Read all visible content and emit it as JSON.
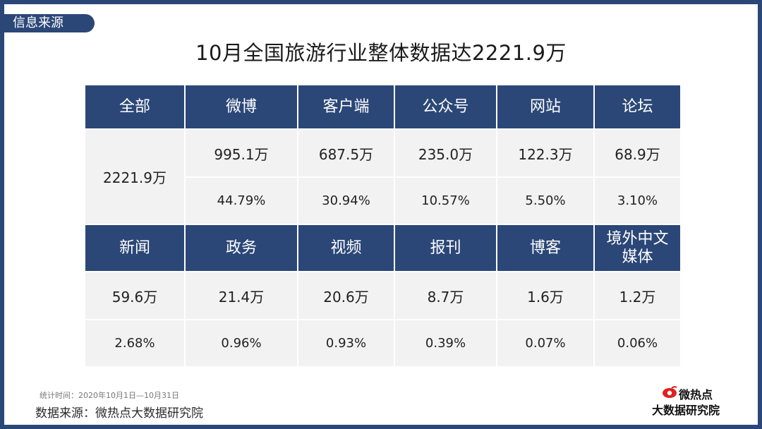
{
  "section_tag": "信息来源",
  "title": "10月全国旅游行业整体数据达2221.9万",
  "table": {
    "top_headers": [
      "全部",
      "微博",
      "客户端",
      "公众号",
      "网站",
      "论坛"
    ],
    "total": "2221.9万",
    "top_values": [
      "995.1万",
      "687.5万",
      "235.0万",
      "122.3万",
      "68.9万"
    ],
    "top_percents": [
      "44.79%",
      "30.94%",
      "10.57%",
      "5.50%",
      "3.10%"
    ],
    "bottom_headers": [
      "新闻",
      "政务",
      "视频",
      "报刊",
      "博客",
      "境外中文媒体"
    ],
    "bottom_values": [
      "59.6万",
      "21.4万",
      "20.6万",
      "8.7万",
      "1.6万",
      "1.2万"
    ],
    "bottom_percents": [
      "2.68%",
      "0.96%",
      "0.93%",
      "0.39%",
      "0.07%",
      "0.06%"
    ]
  },
  "footnote": "统计时间：2020年10月1日—10月31日",
  "source": "数据来源：微热点大数据研究院",
  "logo": {
    "top_text": "微热点",
    "bottom_text": "大数据研究院",
    "icon": "eye-icon",
    "brand_color": "#e02020"
  },
  "colors": {
    "header_bg": "#2b4777",
    "cell_bg": "#f2f2f2",
    "frame": "#2b4777"
  }
}
